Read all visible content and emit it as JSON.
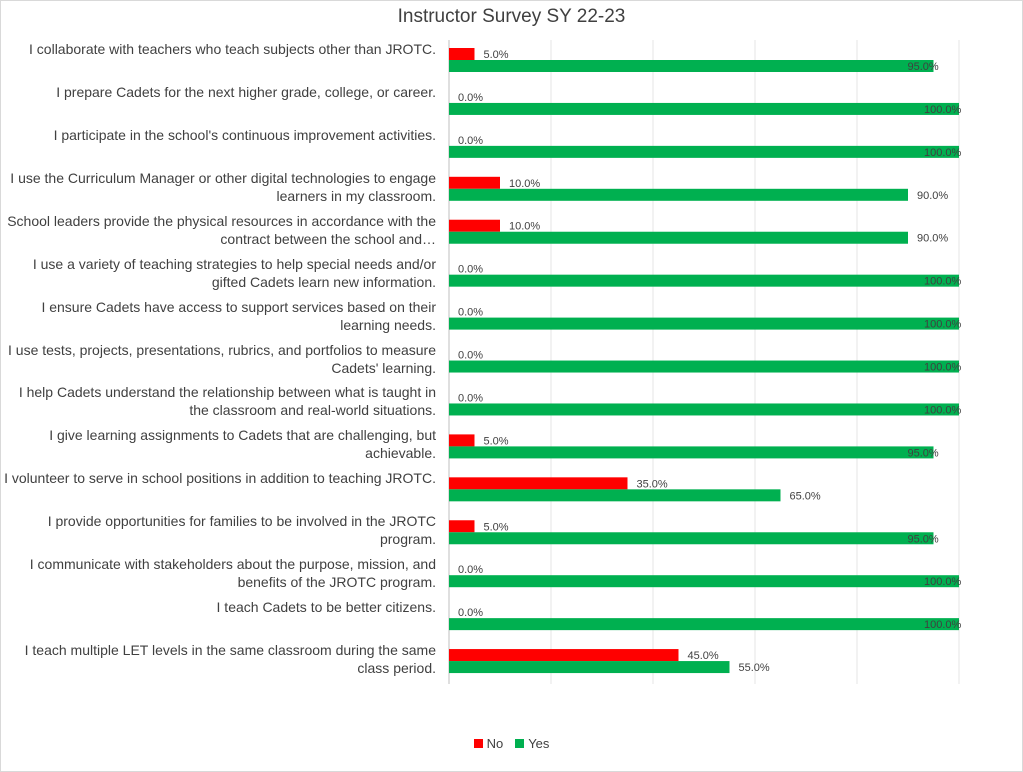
{
  "chart_data": {
    "type": "bar",
    "orientation": "horizontal",
    "title": "Instructor Survey SY 22-23",
    "categories": [
      "I collaborate with teachers who teach subjects other than JROTC.",
      "I prepare Cadets for the next higher grade, college, or career.",
      "I participate in the school's continuous improvement activities.",
      "I use the Curriculum Manager or other digital technologies to engage learners in my classroom.",
      "School leaders provide the physical resources in accordance with the contract between the school and…",
      "I use a variety of teaching strategies to help special needs and/or gifted Cadets learn new information.",
      "I ensure Cadets have access to support services based on their learning needs.",
      "I use tests, projects, presentations, rubrics, and portfolios to measure Cadets' learning.",
      "I help Cadets understand the relationship between what is taught in the classroom and real-world situations.",
      "I give learning assignments to Cadets that are challenging, but achievable.",
      "I volunteer to serve in school positions in addition to teaching JROTC.",
      "I provide opportunities for families to be involved in the JROTC program.",
      "I communicate with stakeholders about the purpose, mission, and benefits of the JROTC program.",
      "I teach Cadets to be better citizens.",
      "I teach multiple LET levels in the same classroom during the same class period."
    ],
    "series": [
      {
        "name": "No",
        "color": "#ff0000",
        "values": [
          5,
          0,
          0,
          10,
          10,
          0,
          0,
          0,
          0,
          5,
          35,
          5,
          0,
          0,
          45
        ],
        "labels": [
          "5.0%",
          "0.0%",
          "0.0%",
          "10.0%",
          "10.0%",
          "0.0%",
          "0.0%",
          "0.0%",
          "0.0%",
          "5.0%",
          "35.0%",
          "5.0%",
          "0.0%",
          "0.0%",
          "45.0%"
        ]
      },
      {
        "name": "Yes",
        "color": "#00b050",
        "values": [
          95,
          100,
          100,
          90,
          90,
          100,
          100,
          100,
          100,
          95,
          65,
          95,
          100,
          100,
          55
        ],
        "labels": [
          "95.0%",
          "100.0%",
          "100.0%",
          "90.0%",
          "90.0%",
          "100.0%",
          "100.0%",
          "100.0%",
          "100.0%",
          "95.0%",
          "65.0%",
          "95.0%",
          "100.0%",
          "100.0%",
          "55.0%"
        ]
      }
    ],
    "xlim": [
      0,
      100
    ],
    "grid": true,
    "legend_position": "bottom"
  }
}
